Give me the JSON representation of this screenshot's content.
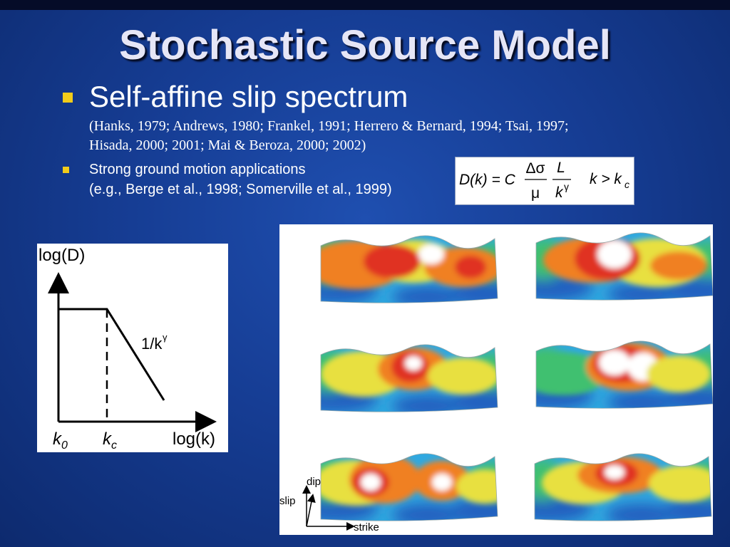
{
  "slide": {
    "title": "Stochastic Source Model",
    "bullet1": {
      "heading": "Self-affine slip spectrum",
      "refs_line1": "(Hanks, 1979; Andrews, 1980; Frankel, 1991; Herrero & Bernard, 1994; Tsai, 1997;",
      "refs_line2": "Hisada, 2000; 2001; Mai & Beroza, 2000; 2002)"
    },
    "bullet2": {
      "line1": "Strong ground motion applications",
      "line2": "(e.g., Berge et al., 1998; Somerville et al., 1999)"
    },
    "formula": {
      "lhs": "D(k) = C",
      "num1": "Δσ",
      "den1": "μ",
      "num2": "L",
      "den2_base": "k",
      "den2_exp": "γ",
      "condition": "k > k",
      "condition_sub": "c"
    },
    "spectrum_plot": {
      "ylabel": "log(D)",
      "xlabel": "log(k)",
      "slope_label_main": "1/k",
      "slope_label_exp": "γ",
      "tick0_base": "k",
      "tick0_sub": "0",
      "tickc_base": "k",
      "tickc_sub": "c"
    },
    "slip_figure": {
      "axis_dip": "dip",
      "axis_slip": "slip",
      "axis_strike": "strike",
      "panel_count": 6,
      "colors": [
        "#2060c0",
        "#30a8e0",
        "#40c070",
        "#e8e040",
        "#f08020",
        "#e03020",
        "#ffffff"
      ]
    }
  }
}
